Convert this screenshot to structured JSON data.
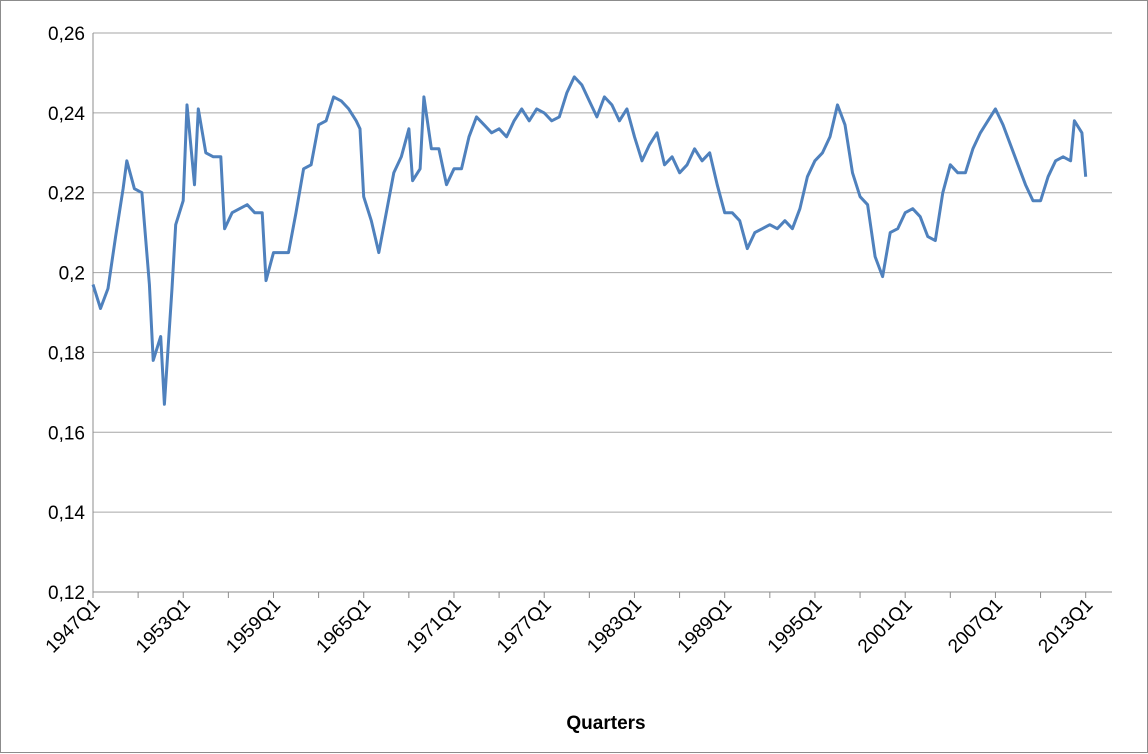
{
  "chart_data": {
    "type": "line",
    "title": "",
    "xlabel": "Quarters",
    "ylabel": "",
    "ylim": [
      0.12,
      0.26
    ],
    "y_ticks": [
      0.12,
      0.14,
      0.16,
      0.18,
      0.2,
      0.22,
      0.24,
      0.26
    ],
    "y_tick_labels": [
      "0,12",
      "0,14",
      "0,16",
      "0,18",
      "0,2",
      "0,22",
      "0,24",
      "0,26"
    ],
    "x_tick_labels": [
      "1947Q1",
      "1953Q1",
      "1959Q1",
      "1965Q1",
      "1971Q1",
      "1977Q1",
      "1983Q1",
      "1989Q1",
      "1995Q1",
      "2001Q1",
      "2007Q1",
      "2013Q1"
    ],
    "x_range": [
      "1947Q1",
      "2014Q4"
    ],
    "grid": "horizontal",
    "legend": "none",
    "line_color": "#4f81bd",
    "series": [
      {
        "values": [
          {
            "x": "1947Q1",
            "y": 0.197
          },
          {
            "x": "1947Q3",
            "y": 0.191
          },
          {
            "x": "1948Q1",
            "y": 0.196
          },
          {
            "x": "1948Q3",
            "y": 0.209
          },
          {
            "x": "1949Q1",
            "y": 0.221
          },
          {
            "x": "1949Q2",
            "y": 0.228
          },
          {
            "x": "1949Q4",
            "y": 0.221
          },
          {
            "x": "1950Q2",
            "y": 0.22
          },
          {
            "x": "1950Q4",
            "y": 0.197
          },
          {
            "x": "1951Q1",
            "y": 0.178
          },
          {
            "x": "1951Q3",
            "y": 0.184
          },
          {
            "x": "1951Q4",
            "y": 0.167
          },
          {
            "x": "1952Q2",
            "y": 0.196
          },
          {
            "x": "1952Q3",
            "y": 0.212
          },
          {
            "x": "1953Q1",
            "y": 0.218
          },
          {
            "x": "1953Q2",
            "y": 0.242
          },
          {
            "x": "1953Q4",
            "y": 0.222
          },
          {
            "x": "1954Q1",
            "y": 0.241
          },
          {
            "x": "1954Q3",
            "y": 0.23
          },
          {
            "x": "1955Q1",
            "y": 0.229
          },
          {
            "x": "1955Q3",
            "y": 0.229
          },
          {
            "x": "1955Q4",
            "y": 0.211
          },
          {
            "x": "1956Q2",
            "y": 0.215
          },
          {
            "x": "1956Q4",
            "y": 0.216
          },
          {
            "x": "1957Q2",
            "y": 0.217
          },
          {
            "x": "1957Q4",
            "y": 0.215
          },
          {
            "x": "1958Q2",
            "y": 0.215
          },
          {
            "x": "1958Q3",
            "y": 0.198
          },
          {
            "x": "1959Q1",
            "y": 0.205
          },
          {
            "x": "1959Q3",
            "y": 0.205
          },
          {
            "x": "1960Q1",
            "y": 0.205
          },
          {
            "x": "1960Q3",
            "y": 0.215
          },
          {
            "x": "1961Q1",
            "y": 0.226
          },
          {
            "x": "1961Q3",
            "y": 0.227
          },
          {
            "x": "1962Q1",
            "y": 0.237
          },
          {
            "x": "1962Q3",
            "y": 0.238
          },
          {
            "x": "1963Q1",
            "y": 0.244
          },
          {
            "x": "1963Q3",
            "y": 0.243
          },
          {
            "x": "1964Q1",
            "y": 0.241
          },
          {
            "x": "1964Q3",
            "y": 0.238
          },
          {
            "x": "1964Q4",
            "y": 0.236
          },
          {
            "x": "1965Q1",
            "y": 0.219
          },
          {
            "x": "1965Q3",
            "y": 0.213
          },
          {
            "x": "1966Q1",
            "y": 0.205
          },
          {
            "x": "1966Q3",
            "y": 0.215
          },
          {
            "x": "1967Q1",
            "y": 0.225
          },
          {
            "x": "1967Q3",
            "y": 0.229
          },
          {
            "x": "1968Q1",
            "y": 0.236
          },
          {
            "x": "1968Q2",
            "y": 0.223
          },
          {
            "x": "1968Q4",
            "y": 0.226
          },
          {
            "x": "1969Q1",
            "y": 0.244
          },
          {
            "x": "1969Q3",
            "y": 0.231
          },
          {
            "x": "1970Q1",
            "y": 0.231
          },
          {
            "x": "1970Q3",
            "y": 0.222
          },
          {
            "x": "1971Q1",
            "y": 0.226
          },
          {
            "x": "1971Q3",
            "y": 0.226
          },
          {
            "x": "1972Q1",
            "y": 0.234
          },
          {
            "x": "1972Q3",
            "y": 0.239
          },
          {
            "x": "1973Q1",
            "y": 0.237
          },
          {
            "x": "1973Q3",
            "y": 0.235
          },
          {
            "x": "1974Q1",
            "y": 0.236
          },
          {
            "x": "1974Q3",
            "y": 0.234
          },
          {
            "x": "1975Q1",
            "y": 0.238
          },
          {
            "x": "1975Q3",
            "y": 0.241
          },
          {
            "x": "1976Q1",
            "y": 0.238
          },
          {
            "x": "1976Q3",
            "y": 0.241
          },
          {
            "x": "1977Q1",
            "y": 0.24
          },
          {
            "x": "1977Q3",
            "y": 0.238
          },
          {
            "x": "1978Q1",
            "y": 0.239
          },
          {
            "x": "1978Q3",
            "y": 0.245
          },
          {
            "x": "1979Q1",
            "y": 0.249
          },
          {
            "x": "1979Q3",
            "y": 0.247
          },
          {
            "x": "1980Q1",
            "y": 0.243
          },
          {
            "x": "1980Q3",
            "y": 0.239
          },
          {
            "x": "1981Q1",
            "y": 0.244
          },
          {
            "x": "1981Q3",
            "y": 0.242
          },
          {
            "x": "1982Q1",
            "y": 0.238
          },
          {
            "x": "1982Q3",
            "y": 0.241
          },
          {
            "x": "1983Q1",
            "y": 0.234
          },
          {
            "x": "1983Q3",
            "y": 0.228
          },
          {
            "x": "1984Q1",
            "y": 0.232
          },
          {
            "x": "1984Q3",
            "y": 0.235
          },
          {
            "x": "1985Q1",
            "y": 0.227
          },
          {
            "x": "1985Q3",
            "y": 0.229
          },
          {
            "x": "1986Q1",
            "y": 0.225
          },
          {
            "x": "1986Q3",
            "y": 0.227
          },
          {
            "x": "1987Q1",
            "y": 0.231
          },
          {
            "x": "1987Q3",
            "y": 0.228
          },
          {
            "x": "1988Q1",
            "y": 0.23
          },
          {
            "x": "1988Q3",
            "y": 0.222
          },
          {
            "x": "1989Q1",
            "y": 0.215
          },
          {
            "x": "1989Q3",
            "y": 0.215
          },
          {
            "x": "1990Q1",
            "y": 0.213
          },
          {
            "x": "1990Q3",
            "y": 0.206
          },
          {
            "x": "1991Q1",
            "y": 0.21
          },
          {
            "x": "1991Q3",
            "y": 0.211
          },
          {
            "x": "1992Q1",
            "y": 0.212
          },
          {
            "x": "1992Q3",
            "y": 0.211
          },
          {
            "x": "1993Q1",
            "y": 0.213
          },
          {
            "x": "1993Q3",
            "y": 0.211
          },
          {
            "x": "1994Q1",
            "y": 0.216
          },
          {
            "x": "1994Q3",
            "y": 0.224
          },
          {
            "x": "1995Q1",
            "y": 0.228
          },
          {
            "x": "1995Q3",
            "y": 0.23
          },
          {
            "x": "1996Q1",
            "y": 0.234
          },
          {
            "x": "1996Q3",
            "y": 0.242
          },
          {
            "x": "1997Q1",
            "y": 0.237
          },
          {
            "x": "1997Q3",
            "y": 0.225
          },
          {
            "x": "1998Q1",
            "y": 0.219
          },
          {
            "x": "1998Q3",
            "y": 0.217
          },
          {
            "x": "1999Q1",
            "y": 0.204
          },
          {
            "x": "1999Q3",
            "y": 0.199
          },
          {
            "x": "2000Q1",
            "y": 0.21
          },
          {
            "x": "2000Q3",
            "y": 0.211
          },
          {
            "x": "2001Q1",
            "y": 0.215
          },
          {
            "x": "2001Q3",
            "y": 0.216
          },
          {
            "x": "2002Q1",
            "y": 0.214
          },
          {
            "x": "2002Q3",
            "y": 0.209
          },
          {
            "x": "2003Q1",
            "y": 0.208
          },
          {
            "x": "2003Q3",
            "y": 0.22
          },
          {
            "x": "2004Q1",
            "y": 0.227
          },
          {
            "x": "2004Q3",
            "y": 0.225
          },
          {
            "x": "2005Q1",
            "y": 0.225
          },
          {
            "x": "2005Q3",
            "y": 0.231
          },
          {
            "x": "2006Q1",
            "y": 0.235
          },
          {
            "x": "2006Q3",
            "y": 0.238
          },
          {
            "x": "2007Q1",
            "y": 0.241
          },
          {
            "x": "2007Q3",
            "y": 0.237
          },
          {
            "x": "2008Q1",
            "y": 0.232
          },
          {
            "x": "2008Q3",
            "y": 0.227
          },
          {
            "x": "2009Q1",
            "y": 0.222
          },
          {
            "x": "2009Q3",
            "y": 0.218
          },
          {
            "x": "2010Q1",
            "y": 0.218
          },
          {
            "x": "2010Q3",
            "y": 0.224
          },
          {
            "x": "2011Q1",
            "y": 0.228
          },
          {
            "x": "2011Q3",
            "y": 0.229
          },
          {
            "x": "2012Q1",
            "y": 0.228
          },
          {
            "x": "2012Q2",
            "y": 0.238
          },
          {
            "x": "2012Q4",
            "y": 0.235
          },
          {
            "x": "2013Q1",
            "y": 0.224
          }
        ]
      }
    ]
  }
}
